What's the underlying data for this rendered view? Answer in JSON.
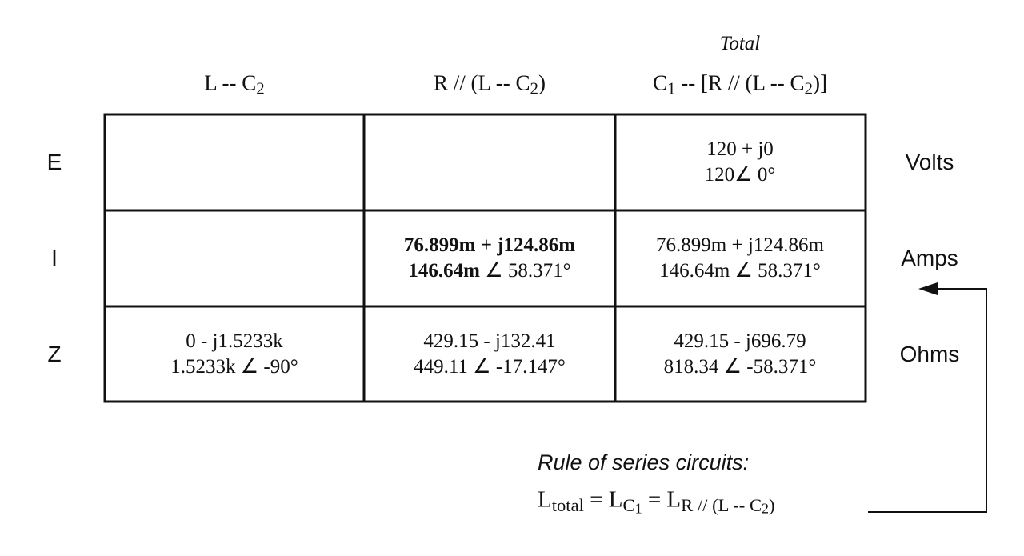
{
  "header": {
    "total_label": "Total",
    "columns": [
      {
        "parts": [
          {
            "text": "L -- C"
          },
          {
            "text": "2",
            "sub": 1
          }
        ]
      },
      {
        "parts": [
          {
            "text": "R // (L -- C"
          },
          {
            "text": "2",
            "sub": 1
          },
          {
            "text": ")"
          }
        ]
      },
      {
        "parts": [
          {
            "text": "C"
          },
          {
            "text": "1",
            "sub": 1
          },
          {
            "text": " -- [R // (L -- C"
          },
          {
            "text": "2",
            "sub": 1
          },
          {
            "text": ")]"
          }
        ]
      }
    ]
  },
  "table": {
    "rows": [
      {
        "label": "E",
        "unit": "Volts",
        "cells": [
          null,
          null,
          {
            "lines": [
              [
                {
                  "text": "120 + j0"
                }
              ],
              [
                {
                  "text": "120∠ 0°"
                }
              ]
            ]
          }
        ]
      },
      {
        "label": "I",
        "unit": "Amps",
        "cells": [
          null,
          {
            "lines": [
              [
                {
                  "text": "76.899m + j124.86m",
                  "bold": true
                }
              ],
              [
                {
                  "text": "146.64m",
                  "bold": true
                },
                {
                  "text": " ∠ 58.371°"
                }
              ]
            ]
          },
          {
            "lines": [
              [
                {
                  "text": "76.899m + j124.86m"
                }
              ],
              [
                {
                  "text": "146.64m ∠ 58.371°"
                }
              ]
            ]
          }
        ]
      },
      {
        "label": "Z",
        "unit": "Ohms",
        "cells": [
          {
            "lines": [
              [
                {
                  "text": "0 - j1.5233k"
                }
              ],
              [
                {
                  "text": "1.5233k ∠ -90°"
                }
              ]
            ]
          },
          {
            "lines": [
              [
                {
                  "text": "429.15 - j132.41"
                }
              ],
              [
                {
                  "text": "449.11 ∠ -17.147°"
                }
              ]
            ]
          },
          {
            "lines": [
              [
                {
                  "text": "429.15 - j696.79"
                }
              ],
              [
                {
                  "text": "818.34 ∠ -58.371°"
                }
              ]
            ]
          }
        ]
      }
    ]
  },
  "rule": {
    "title": "Rule of series circuits:",
    "formula": [
      {
        "text": "L"
      },
      {
        "text": "total",
        "sub": 1
      },
      {
        "text": " = L"
      },
      {
        "text": "C",
        "sub": 1
      },
      {
        "text": "1",
        "sub": 2
      },
      {
        "text": " = L"
      },
      {
        "text": "R // (L -- C",
        "sub": 1
      },
      {
        "text": "2",
        "sub": 2
      },
      {
        "text": ")",
        "sub": 1
      }
    ]
  }
}
